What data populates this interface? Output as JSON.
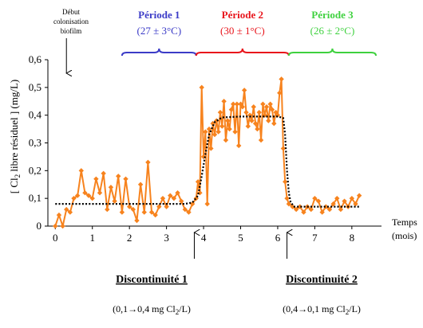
{
  "chart_data": {
    "type": "line",
    "ylabel_pre": "[ Cl",
    "ylabel_sub": "2",
    "ylabel_post": " libre résiduel ] (mg/L)",
    "xlabel_line1": "Temps",
    "xlabel_line2": "(mois)",
    "xlim": [
      -0.2,
      8.8
    ],
    "ylim": [
      0,
      0.6
    ],
    "x_ticks": [
      0,
      1,
      2,
      3,
      4,
      5,
      6,
      7,
      8
    ],
    "x_tick_labels": [
      "0",
      "1",
      "2",
      "3",
      "4",
      "5",
      "6",
      "7",
      "8"
    ],
    "y_ticks": [
      0,
      0.1,
      0.2,
      0.3,
      0.4,
      0.5,
      0.6
    ],
    "y_tick_labels": [
      "0",
      "0,1",
      "0,2",
      "0,3",
      "0,4",
      "0,5",
      "0,6"
    ],
    "colors": {
      "data": "#f7831e",
      "model": "#000000",
      "p1": "#3b3bc7",
      "p2": "#e8141b",
      "p3": "#3ed13e"
    },
    "biofilm_note": [
      "Début",
      "colonisation",
      "biofilm"
    ],
    "biofilm_x": 0.3,
    "periods": [
      {
        "label": "Période 1",
        "range": "(27 ± 3°C)",
        "x_start": 1.8,
        "x_end": 3.8,
        "color": "#3b3bc7"
      },
      {
        "label": "Période 2",
        "range": "(30 ± 1°C)",
        "x_start": 3.8,
        "x_end": 6.3,
        "color": "#e8141b"
      },
      {
        "label": "Période 3",
        "range": "(26 ± 2°C)",
        "x_start": 6.3,
        "x_end": 8.65,
        "color": "#3ed13e"
      }
    ],
    "discontinuities": [
      {
        "title": "Discontinuité 1",
        "x": 3.75,
        "note_pre": "(0,1",
        "note_mid": "0,4 mg Cl",
        "note_sub": "2",
        "note_post": "/L)"
      },
      {
        "title": "Discontinuité 2",
        "x": 6.25,
        "note_pre": "(0,4",
        "note_mid": "0,1 mg Cl",
        "note_sub": "2",
        "note_post": "/L)"
      }
    ],
    "series": [
      {
        "style": "orange line with diamond markers",
        "x": [
          0,
          0.1,
          0.2,
          0.3,
          0.4,
          0.5,
          0.6,
          0.7,
          0.8,
          0.9,
          1.0,
          1.1,
          1.2,
          1.3,
          1.4,
          1.5,
          1.6,
          1.7,
          1.8,
          1.9,
          2.0,
          2.1,
          2.2,
          2.3,
          2.4,
          2.5,
          2.6,
          2.7,
          2.8,
          2.9,
          3.0,
          3.1,
          3.2,
          3.3,
          3.4,
          3.5,
          3.6,
          3.7,
          3.8,
          3.85,
          3.9,
          3.95,
          4.0,
          4.05,
          4.1,
          4.15,
          4.2,
          4.25,
          4.3,
          4.35,
          4.4,
          4.45,
          4.5,
          4.55,
          4.6,
          4.65,
          4.7,
          4.75,
          4.8,
          4.85,
          4.9,
          4.95,
          5.0,
          5.05,
          5.1,
          5.15,
          5.2,
          5.25,
          5.3,
          5.35,
          5.4,
          5.45,
          5.5,
          5.55,
          5.6,
          5.65,
          5.7,
          5.75,
          5.8,
          5.85,
          5.9,
          5.95,
          6.0,
          6.05,
          6.1,
          6.15,
          6.2,
          6.25,
          6.3,
          6.4,
          6.5,
          6.6,
          6.7,
          6.8,
          6.9,
          7.0,
          7.1,
          7.2,
          7.3,
          7.4,
          7.5,
          7.6,
          7.7,
          7.8,
          7.9,
          8.0,
          8.1,
          8.2
        ],
        "y": [
          0.0,
          0.04,
          0.0,
          0.06,
          0.05,
          0.1,
          0.11,
          0.2,
          0.12,
          0.11,
          0.1,
          0.17,
          0.12,
          0.19,
          0.06,
          0.14,
          0.09,
          0.18,
          0.05,
          0.17,
          0.07,
          0.06,
          0.02,
          0.15,
          0.05,
          0.23,
          0.05,
          0.04,
          0.07,
          0.1,
          0.07,
          0.11,
          0.1,
          0.12,
          0.09,
          0.06,
          0.05,
          0.08,
          0.1,
          0.16,
          0.12,
          0.5,
          0.25,
          0.34,
          0.08,
          0.35,
          0.28,
          0.37,
          0.33,
          0.38,
          0.34,
          0.41,
          0.36,
          0.45,
          0.31,
          0.38,
          0.35,
          0.42,
          0.44,
          0.34,
          0.44,
          0.29,
          0.44,
          0.43,
          0.49,
          0.41,
          0.36,
          0.4,
          0.38,
          0.43,
          0.37,
          0.35,
          0.41,
          0.31,
          0.44,
          0.4,
          0.43,
          0.38,
          0.44,
          0.42,
          0.37,
          0.41,
          0.4,
          0.48,
          0.53,
          0.28,
          0.16,
          0.1,
          0.08,
          0.07,
          0.06,
          0.07,
          0.05,
          0.07,
          0.06,
          0.1,
          0.09,
          0.05,
          0.07,
          0.06,
          0.08,
          0.1,
          0.06,
          0.09,
          0.07,
          0.1,
          0.08,
          0.11
        ]
      },
      {
        "style": "black dotted model curve",
        "x": [
          0,
          1.0,
          2.0,
          3.0,
          3.5,
          3.7,
          3.85,
          3.95,
          4.05,
          4.15,
          4.3,
          4.5,
          5.0,
          5.5,
          6.0,
          6.15,
          6.2,
          6.25,
          6.3,
          6.35,
          6.45,
          7.0,
          8.0,
          8.2
        ],
        "y": [
          0.08,
          0.08,
          0.08,
          0.08,
          0.08,
          0.085,
          0.11,
          0.18,
          0.26,
          0.33,
          0.375,
          0.392,
          0.395,
          0.395,
          0.395,
          0.39,
          0.33,
          0.2,
          0.12,
          0.085,
          0.07,
          0.07,
          0.07,
          0.07
        ]
      }
    ]
  }
}
